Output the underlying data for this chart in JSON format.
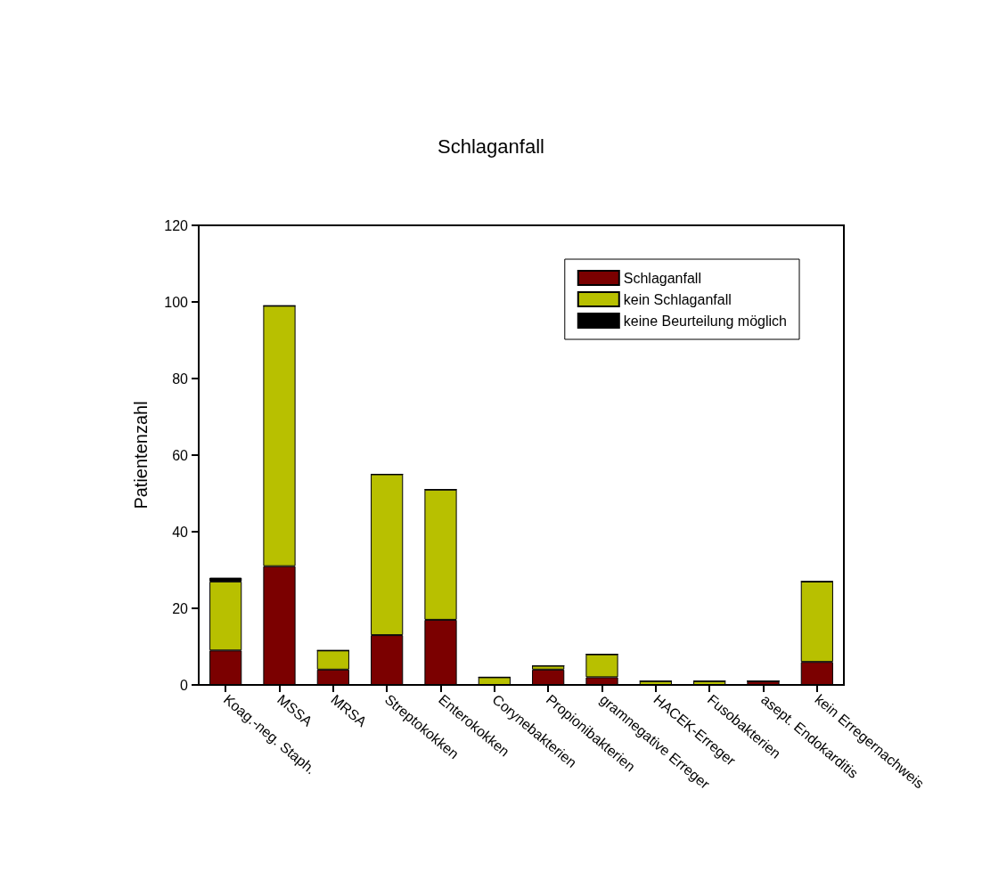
{
  "chart_data": {
    "type": "bar",
    "title": "Schlaganfall",
    "ylabel": "Patientenzahl",
    "stacked": true,
    "categories": [
      "Koag.-neg. Staph.",
      "MSSA",
      "MRSA",
      "Streptokokken",
      "Enterokokken",
      "Corynebakterien",
      "Propionibakterien",
      "gramnegative Erreger",
      "HACEK-Erreger",
      "Fusobakterien",
      "asept. Endokarditis",
      "kein Erregernachweis"
    ],
    "series": [
      {
        "name": "Schlaganfall",
        "color": "#7b0000",
        "values": [
          9,
          31,
          4,
          13,
          17,
          0,
          4,
          2,
          0,
          0,
          1,
          6
        ]
      },
      {
        "name": "kein Schlaganfall",
        "color": "#b8c000",
        "values": [
          18,
          68,
          5,
          42,
          34,
          2,
          1,
          6,
          1,
          1,
          0,
          21
        ]
      },
      {
        "name": "keine Beurteilung möglich",
        "color": "#000000",
        "values": [
          1,
          0,
          0,
          0,
          0,
          0,
          0,
          0,
          0,
          0,
          0,
          0
        ]
      }
    ],
    "ylim": [
      0,
      120
    ],
    "yticks": [
      0,
      20,
      40,
      60,
      80,
      100,
      120
    ],
    "grid": false,
    "legend": "top right"
  }
}
